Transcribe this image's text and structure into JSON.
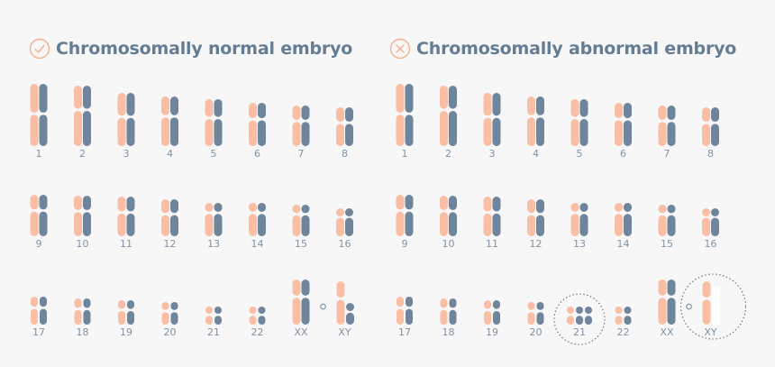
{
  "colors": {
    "maternal": "#f9bea3",
    "paternal": "#6f859b",
    "label": "#7e93a7",
    "title": "#647d95",
    "icon": "#f6ae8f",
    "dotted": "#6b6b6b"
  },
  "panels": [
    {
      "id": "normal",
      "title": "Chromosomally normal embryo",
      "icon": "check-circle-icon",
      "rows": [
        [
          "1",
          "2",
          "3",
          "4",
          "5",
          "6",
          "7",
          "8"
        ],
        [
          "9",
          "10",
          "11",
          "12",
          "13",
          "14",
          "15",
          "16"
        ],
        [
          "17",
          "18",
          "19",
          "20",
          "21",
          "22",
          "XX",
          "XY"
        ]
      ],
      "chromosome_copies": {
        "21": 2,
        "XY": 2
      }
    },
    {
      "id": "abnormal",
      "title": "Chromosomally abnormal embryo",
      "icon": "x-circle-icon",
      "rows": [
        [
          "1",
          "2",
          "3",
          "4",
          "5",
          "6",
          "7",
          "8"
        ],
        [
          "9",
          "10",
          "11",
          "12",
          "13",
          "14",
          "15",
          "16"
        ],
        [
          "17",
          "18",
          "19",
          "20",
          "21",
          "22",
          "XX",
          "XY"
        ]
      ],
      "chromosome_copies": {
        "21": 3,
        "XY": 1
      },
      "highlighted": [
        "21",
        "XY"
      ]
    }
  ]
}
